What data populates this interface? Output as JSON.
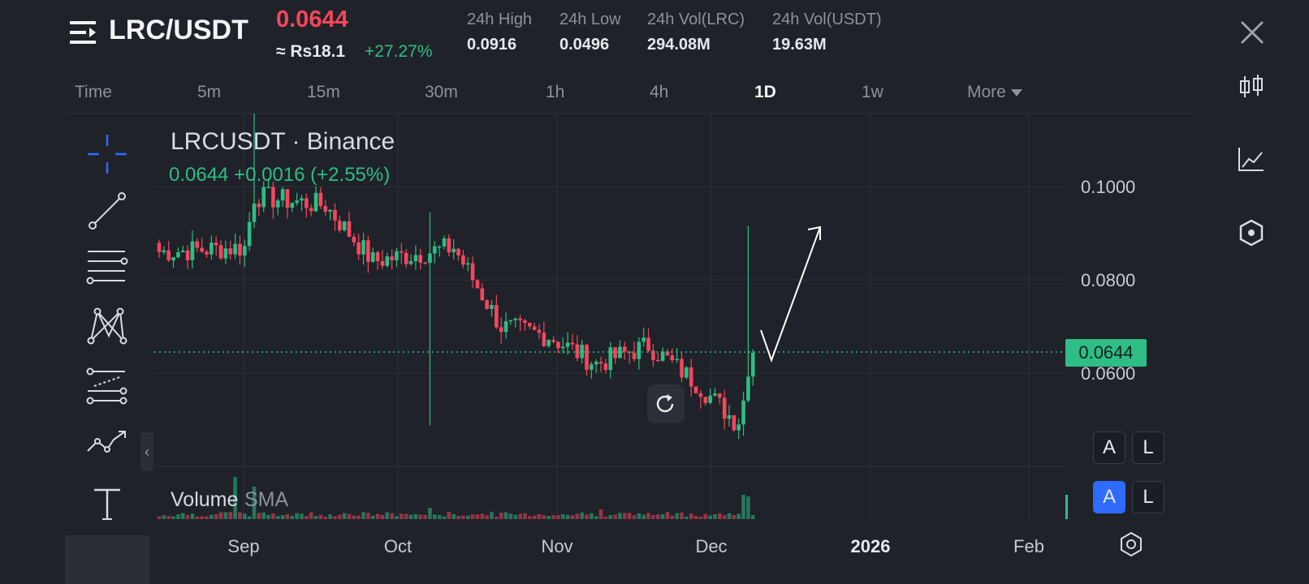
{
  "header": {
    "pair": "LRC/USDT",
    "price": "0.0644",
    "approx_price": "≈ Rs18.1",
    "change_pct": "+27.27%",
    "stats": [
      {
        "label": "24h High",
        "value": "0.0916"
      },
      {
        "label": "24h Low",
        "value": "0.0496"
      },
      {
        "label": "24h Vol(LRC)",
        "value": "294.08M"
      },
      {
        "label": "24h Vol(USDT)",
        "value": "19.63M"
      }
    ]
  },
  "timeframes": [
    "Time",
    "5m",
    "15m",
    "30m",
    "1h",
    "4h",
    "1D",
    "1w",
    "More"
  ],
  "active_timeframe": "1D",
  "chart": {
    "symbol_line": "LRCUSDT · Binance",
    "quote_line": "0.0644  +0.0016 (+2.55%)",
    "volume_label": "Volume",
    "volume_indicator": "SMA",
    "last_price_tag": "0.0644",
    "y_ticks": [
      "0.1000",
      "0.0800",
      "0.0600"
    ],
    "x_ticks": [
      "Sep",
      "Oct",
      "Nov",
      "Dec",
      "2026",
      "Feb"
    ],
    "scale_buttons": [
      {
        "a": "A",
        "l": "L"
      },
      {
        "a": "A",
        "l": "L"
      }
    ]
  },
  "icons": {
    "menu": "menu-icon",
    "close": "close-icon",
    "candles": "candlestick-icon",
    "indicators": "indicator-icon",
    "settings": "settings-icon",
    "crosshair": "crosshair-icon",
    "trend_line": "trend-line-icon",
    "fib": "fib-levels-icon",
    "pattern": "pattern-icon",
    "forecast": "forecast-icon",
    "path": "path-icon",
    "text": "text-icon",
    "reset": "reset-icon"
  },
  "colors": {
    "background": "#1f2229",
    "up": "#2ebd85",
    "down": "#f6465d",
    "accent": "#2f6bff"
  },
  "chart_data": {
    "type": "candlestick",
    "y_axis_ticks": [
      "0.1000",
      "0.0800",
      "0.0600"
    ],
    "x_axis_ticks": [
      "Sep",
      "Oct",
      "Nov",
      "Dec",
      "2026",
      "Feb"
    ],
    "last_price": 0.0644,
    "approx_series": [
      {
        "period": "early Aug",
        "close": 0.086
      },
      {
        "period": "late Aug",
        "close": 0.087
      },
      {
        "period": "early Sep",
        "close": 0.098
      },
      {
        "period": "mid Sep",
        "close": 0.096
      },
      {
        "period": "late Sep",
        "close": 0.084
      },
      {
        "period": "early Oct",
        "close": 0.087
      },
      {
        "period": "mid Oct",
        "close": 0.07
      },
      {
        "period": "late Oct",
        "close": 0.068
      },
      {
        "period": "early Nov",
        "close": 0.062
      },
      {
        "period": "mid Nov",
        "close": 0.066
      },
      {
        "period": "late Nov",
        "close": 0.058
      },
      {
        "period": "early Dec",
        "close": 0.049
      },
      {
        "period": "Dec spike",
        "close": 0.0644,
        "high": 0.0916
      }
    ]
  }
}
